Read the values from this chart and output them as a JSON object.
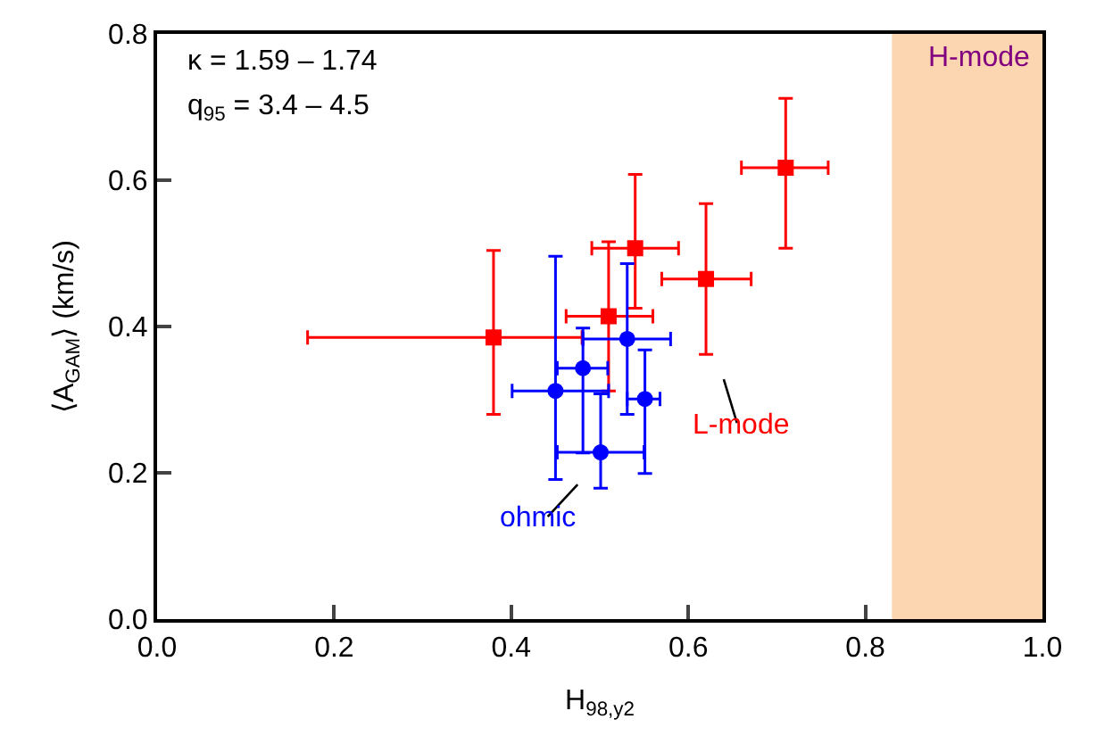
{
  "chart_data": {
    "type": "scatter",
    "xlabel": "H$_{98,y2}$",
    "ylabel": "⟨A$_{GAM}$⟩ (km/s)",
    "xlim": [
      0.0,
      1.0
    ],
    "xticks": [
      {
        "value": 0,
        "label": "0.0"
      },
      0.2,
      0.4,
      0.6,
      0.8,
      {
        "value": 1,
        "label": "1.0"
      }
    ],
    "ylim": [
      0.0,
      0.8
    ],
    "yticks": [
      {
        "value": 0,
        "label": "0.0"
      },
      0.2,
      0.4,
      0.6,
      0.8
    ],
    "grid": false,
    "legend": false,
    "series": [
      {
        "name": "L-mode",
        "color": "#ff0000",
        "marker": "square",
        "x": [
          0.38,
          0.51,
          0.54,
          0.62,
          0.71
        ],
        "values": [
          0.385,
          0.414,
          0.507,
          0.465,
          0.617
        ],
        "errors": [
          [
            0.28,
            0.504
          ],
          [
            0.312,
            0.516
          ],
          [
            0.425,
            0.608
          ],
          [
            0.362,
            0.568
          ],
          [
            0.507,
            0.712
          ]
        ],
        "xerrors": [
          [
            0.17,
            0.48
          ],
          [
            0.462,
            0.56
          ],
          [
            0.491,
            0.589
          ],
          [
            0.57,
            0.671
          ],
          [
            0.66,
            0.758
          ]
        ]
      },
      {
        "name": "ohmic",
        "color": "#0000ff",
        "marker": "circle",
        "x": [
          0.45,
          0.481,
          0.531,
          0.551,
          0.501
        ],
        "values": [
          0.312,
          0.343,
          0.383,
          0.301,
          0.228
        ],
        "errors": [
          [
            0.191,
            0.496
          ],
          [
            0.227,
            0.398
          ],
          [
            0.28,
            0.486
          ],
          [
            0.199,
            0.368
          ],
          [
            0.179,
            0.308
          ]
        ],
        "xerrors": [
          [
            0.401,
            0.51
          ],
          [
            0.452,
            0.509
          ],
          [
            0.481,
            0.58
          ],
          [
            0.531,
            0.568
          ],
          [
            0.452,
            0.55
          ]
        ]
      }
    ],
    "bands": [
      {
        "axis": "x",
        "from": 0.83,
        "to": 1.0,
        "label": "H-mode",
        "color": "#fbc48f"
      }
    ],
    "annotations": [
      "κ = 1.59 – 1.74",
      "q$_{95}$ = 3.4 – 4.5"
    ]
  }
}
